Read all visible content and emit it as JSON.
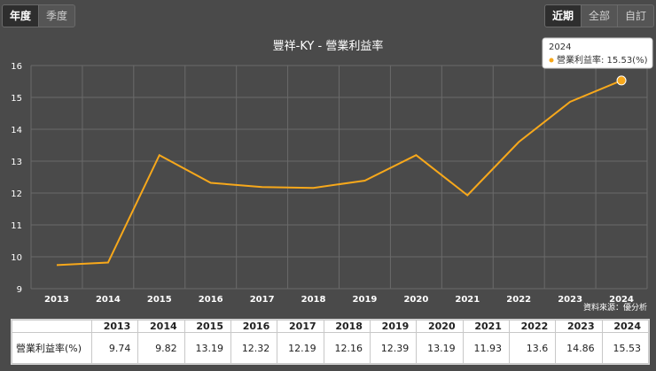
{
  "tabs_left": [
    {
      "label": "年度",
      "active": true
    },
    {
      "label": "季度",
      "active": false
    }
  ],
  "tabs_right": [
    {
      "label": "近期",
      "active": true
    },
    {
      "label": "全部",
      "active": false
    },
    {
      "label": "自訂",
      "active": false
    }
  ],
  "tooltip": {
    "title": "2024",
    "text": "營業利益率: 15.53(%)"
  },
  "source": "資料來源：優分析",
  "table": {
    "row_label": "營業利益率(%)",
    "years": [
      "2013",
      "2014",
      "2015",
      "2016",
      "2017",
      "2018",
      "2019",
      "2020",
      "2021",
      "2022",
      "2023",
      "2024"
    ],
    "values": [
      "9.74",
      "9.82",
      "13.19",
      "12.32",
      "12.19",
      "12.16",
      "12.39",
      "13.19",
      "11.93",
      "13.6",
      "14.86",
      "15.53"
    ]
  },
  "colors": {
    "line": "#f7a81b",
    "background": "#4a4a4a",
    "grid": "#6a6a6a"
  },
  "chart_data": {
    "type": "line",
    "title": "豐祥-KY - 營業利益率",
    "categories": [
      "2013",
      "2014",
      "2015",
      "2016",
      "2017",
      "2018",
      "2019",
      "2020",
      "2021",
      "2022",
      "2023",
      "2024"
    ],
    "series": [
      {
        "values": [
          9.74,
          9.82,
          13.19,
          12.32,
          12.19,
          12.16,
          12.39,
          13.19,
          11.93,
          13.6,
          14.86,
          15.53
        ]
      }
    ],
    "ylim": [
      9,
      16
    ],
    "yticks": [
      9,
      10,
      11,
      12,
      13,
      14,
      15,
      16
    ],
    "grid": true,
    "highlight_index": 11
  }
}
